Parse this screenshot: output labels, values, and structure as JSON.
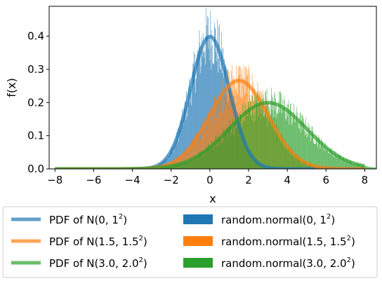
{
  "chart_data": {
    "type": "area",
    "xlabel": "x",
    "ylabel": "f(x)",
    "xlim": [
      -8.3,
      8.6
    ],
    "ylim": [
      0,
      0.49
    ],
    "xticks": [
      -8,
      -6,
      -4,
      -2,
      0,
      2,
      4,
      6,
      8
    ],
    "xtick_labels": [
      "−8",
      "−6",
      "−4",
      "−2",
      "0",
      "2",
      "4",
      "6",
      "8"
    ],
    "yticks": [
      0.0,
      0.1,
      0.2,
      0.3,
      0.4
    ],
    "ytick_labels": [
      "0.0",
      "0.1",
      "0.2",
      "0.3",
      "0.4"
    ],
    "grid": false,
    "legend_placement": "below",
    "pdf_x_range": [
      -8,
      8
    ],
    "histogram_x_range": [
      -8,
      8.6
    ],
    "series": [
      {
        "name_prefix": "PDF of N(0, 1",
        "kind": "pdf",
        "mean": 0,
        "sd": 1.0,
        "color": "#1f77b4",
        "opacity": 0.7
      },
      {
        "name_prefix": "PDF of N(1.5, 1.5",
        "kind": "pdf",
        "mean": 1.5,
        "sd": 1.5,
        "color": "#ff7f0e",
        "opacity": 0.7
      },
      {
        "name_prefix": "PDF of N(3.0, 2.0",
        "kind": "pdf",
        "mean": 3.0,
        "sd": 2.0,
        "color": "#2ca02c",
        "opacity": 0.7
      },
      {
        "name_prefix": "random.normal(0, 1",
        "kind": "histogram",
        "mean": 0,
        "sd": 1.0,
        "color": "#1f77b4"
      },
      {
        "name_prefix": "random.normal(1.5, 1.5",
        "kind": "histogram",
        "mean": 1.5,
        "sd": 1.5,
        "color": "#ff7f0e"
      },
      {
        "name_prefix": "random.normal(3.0, 2.0",
        "kind": "histogram",
        "mean": 3.0,
        "sd": 2.0,
        "color": "#2ca02c"
      }
    ],
    "superscript": "2",
    "name_suffix": ")"
  }
}
